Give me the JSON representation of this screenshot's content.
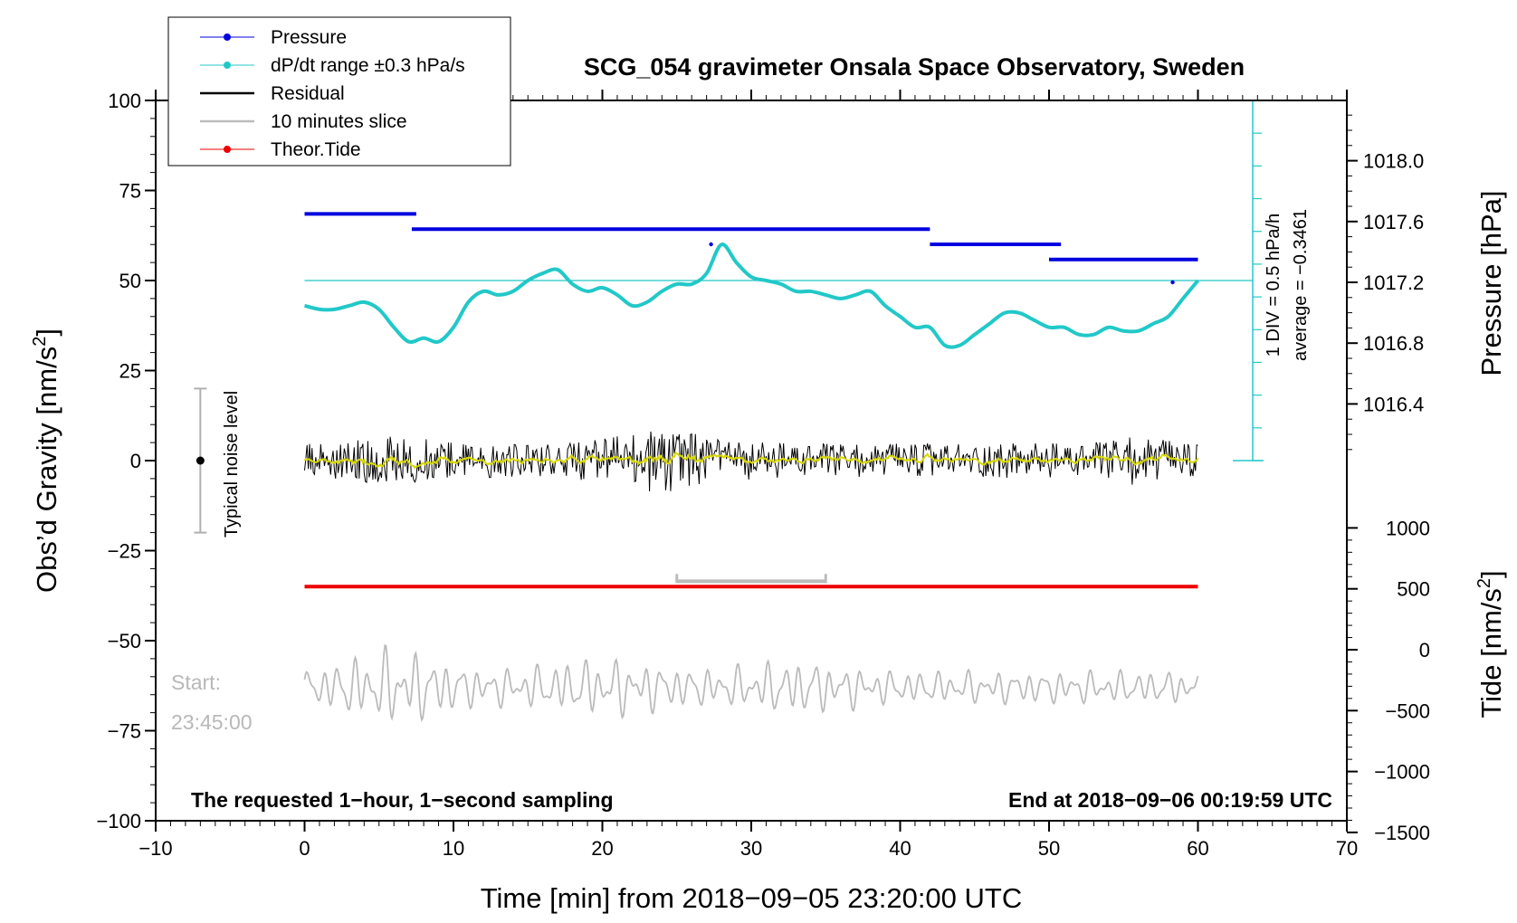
{
  "chart_data": {
    "type": "line",
    "title": "SCG_054 gravimeter Onsala Space Observatory, Sweden",
    "xlabel": "Time [min] from 2018−09−05 23:20:00 UTC",
    "ylabel_left_main": "Obs’d Gravity [nm/s",
    "ylabel_left_sup": "2",
    "ylabel_left_close": "]",
    "ylabel_right_top": "Pressure [hPa]",
    "ylabel_right_bottom_main": "Tide [nm/s",
    "ylabel_right_bottom_sup": "2",
    "ylabel_right_bottom_close": "]",
    "xlim": [
      -10,
      70
    ],
    "ylim": [
      -100,
      100
    ],
    "pressure_lim": [
      1016.0,
      1018.4
    ],
    "tide_lim": [
      -1500,
      1500
    ],
    "x_ticks": [
      -10,
      0,
      10,
      20,
      30,
      40,
      50,
      60,
      70
    ],
    "x_tick_labels": [
      "−10",
      "0",
      "10",
      "20",
      "30",
      "40",
      "50",
      "60",
      "70"
    ],
    "y_ticks": [
      -100,
      -75,
      -50,
      -25,
      0,
      25,
      50,
      75,
      100
    ],
    "y_tick_labels": [
      "−100",
      "−75",
      "−50",
      "−25",
      "0",
      "25",
      "50",
      "75",
      "100"
    ],
    "pressure_ticks": [
      1016.4,
      1016.8,
      1017.2,
      1017.6,
      1018.0
    ],
    "pressure_tick_labels": [
      "1016.4",
      "1016.8",
      "1017.2",
      "1017.6",
      "1018.0"
    ],
    "tide_ticks": [
      -1500,
      -1000,
      -500,
      0,
      500,
      1000
    ],
    "tide_tick_labels": [
      "−1500",
      "−1000",
      "−500",
      "0",
      "500",
      "1000"
    ],
    "legend": [
      {
        "label": "Pressure",
        "color": "#0000e0"
      },
      {
        "label": "dP/dt range ±0.3 hPa/s",
        "color": "#22c8c8"
      },
      {
        "label": "Residual",
        "color": "#000000"
      },
      {
        "label": "10 minutes slice",
        "color": "#bbbbbb"
      },
      {
        "label": "Theor.Tide",
        "color": "#ee0000"
      }
    ],
    "pressure_steps": [
      {
        "x0": 0,
        "x1": 7.5,
        "hpa": 1017.65
      },
      {
        "x0": 7.2,
        "x1": 42.0,
        "hpa": 1017.55
      },
      {
        "x0": 42.0,
        "x1": 50.8,
        "hpa": 1017.45
      },
      {
        "x0": 50.0,
        "x1": 60.0,
        "hpa": 1017.35
      }
    ],
    "pressure_dots": [
      {
        "x": 27.3,
        "hpa": 1017.45
      },
      {
        "x": 58.3,
        "hpa": 1017.2
      }
    ],
    "dpdt_curve": {
      "x": [
        0,
        1,
        2,
        3,
        4,
        5,
        6,
        7,
        8,
        9,
        10,
        11,
        12,
        13,
        14,
        15,
        16,
        17,
        18,
        19,
        20,
        21,
        22,
        23,
        24,
        25,
        26,
        27,
        28,
        29,
        30,
        31,
        32,
        33,
        34,
        35,
        36,
        37,
        38,
        39,
        40,
        41,
        42,
        43,
        44,
        45,
        46,
        47,
        48,
        49,
        50,
        51,
        52,
        53,
        54,
        55,
        56,
        57,
        58,
        59,
        60
      ],
      "y": [
        43,
        42,
        42,
        43,
        44,
        42,
        37,
        33,
        34,
        33,
        37,
        44,
        47,
        46,
        47,
        50,
        52,
        53,
        49,
        47,
        48,
        46,
        43,
        44,
        47,
        49,
        49,
        52,
        60,
        55,
        51,
        50,
        49,
        47,
        47,
        46,
        45,
        46,
        47,
        43,
        40,
        37,
        37,
        32,
        32,
        35,
        38,
        41,
        41,
        39,
        37,
        37,
        35,
        35,
        37,
        36,
        36,
        38,
        40,
        45,
        50
      ]
    },
    "dpdt_average_level": 50,
    "right_axis_note": "1 DIV = 0.5 hPa/h",
    "average_note": "average = −0.3461",
    "noise_label": "Typical noise level",
    "noise_bar": {
      "x": -7,
      "ymin": -20,
      "ymax": 20,
      "center": 0
    },
    "residual": {
      "x_start": 0,
      "x_end": 60,
      "samples": 720,
      "amplitude": 8,
      "max_abs": 15,
      "center": 0
    },
    "tide": {
      "x_start": 0,
      "x_end": 60,
      "value": -35
    },
    "slice_bracket": {
      "x0": 25,
      "x1": 35,
      "y": -33.5
    },
    "slice_trace": {
      "x_start": 0,
      "x_end": 60,
      "center": -63,
      "amplitude": 8,
      "max_abs": 16
    },
    "start_label_1": "Start:",
    "start_label_2": "23:45:00",
    "bottom_left_note": "The requested 1−hour, 1−second sampling",
    "bottom_right_note": "End at 2018−09−06 00:19:59 UTC",
    "colors": {
      "pressure": "#0000e0",
      "dpdt": "#22c8c8",
      "residual": "#000000",
      "smooth": "#d8d800",
      "slice": "#bbbbbb",
      "tide": "#ee0000",
      "noise_bar": "#b0b0b0"
    }
  }
}
